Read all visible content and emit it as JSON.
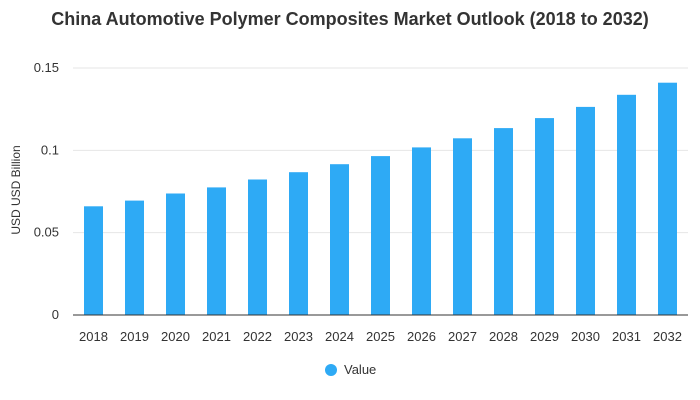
{
  "chart_data": {
    "type": "bar",
    "title": "China Automotive Polymer Composites Market Outlook (2018 to 2032)",
    "xlabel": "",
    "ylabel": "USD USD Billion",
    "categories": [
      "2018",
      "2019",
      "2020",
      "2021",
      "2022",
      "2023",
      "2024",
      "2025",
      "2026",
      "2027",
      "2028",
      "2029",
      "2030",
      "2031",
      "2032"
    ],
    "series": [
      {
        "name": "Value",
        "color": "#2eaaf5",
        "values": [
          0.066,
          0.0695,
          0.0738,
          0.0775,
          0.0823,
          0.0867,
          0.0916,
          0.0965,
          0.1018,
          0.1073,
          0.1135,
          0.1196,
          0.1264,
          0.1337,
          0.1411
        ]
      }
    ],
    "ylim": [
      0,
      0.15
    ],
    "yticks": [
      0,
      0.05,
      0.1,
      0.15
    ],
    "ytick_labels": [
      "0",
      "0.05",
      "0.1",
      "0.15"
    ],
    "grid": true,
    "legend_position": "bottom-center",
    "colors": {
      "bar": "#2eaaf5",
      "grid": "#e6e6e6",
      "axis": "#333333",
      "text": "#333333"
    }
  }
}
